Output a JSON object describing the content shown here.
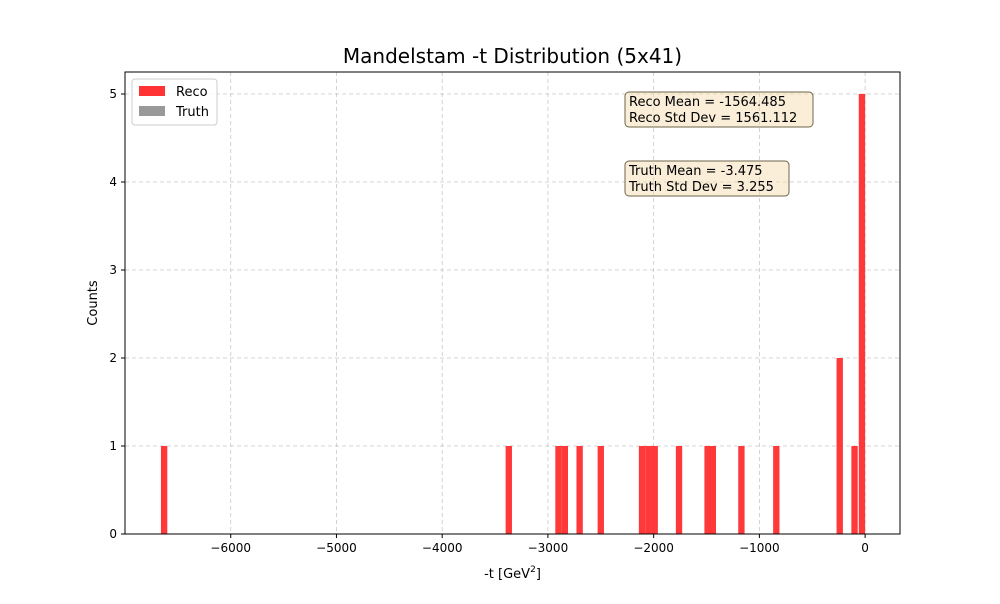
{
  "chart_data": {
    "type": "bar",
    "title": "Mandelstam -t Distribution (5x41)",
    "xlabel": "-t [GeV",
    "xlabel_sup": "2",
    "xlabel_suffix": "]",
    "ylabel": "Counts",
    "xlim": [
      -7000,
      330
    ],
    "ylim": [
      0,
      5.25
    ],
    "x_ticks": [
      -6000,
      -5000,
      -4000,
      -3000,
      -2000,
      -1000,
      0
    ],
    "x_tick_labels": [
      "−6000",
      "−5000",
      "−4000",
      "−3000",
      "−2000",
      "−1000",
      "0"
    ],
    "y_ticks": [
      0,
      1,
      2,
      3,
      4,
      5
    ],
    "y_tick_labels": [
      "0",
      "1",
      "2",
      "3",
      "4",
      "5"
    ],
    "grid": true,
    "legend_position": "top-left",
    "legend": [
      "Reco",
      "Truth"
    ],
    "bin_width": 60,
    "series": [
      {
        "name": "Reco",
        "color": "#ff3333",
        "bins": [
          {
            "x": -6630,
            "count": 1
          },
          {
            "x": -3370,
            "count": 1
          },
          {
            "x": -2900,
            "count": 1
          },
          {
            "x": -2840,
            "count": 1
          },
          {
            "x": -2700,
            "count": 1
          },
          {
            "x": -2500,
            "count": 1
          },
          {
            "x": -2110,
            "count": 1
          },
          {
            "x": -2050,
            "count": 1
          },
          {
            "x": -1990,
            "count": 1
          },
          {
            "x": -1760,
            "count": 1
          },
          {
            "x": -1490,
            "count": 1
          },
          {
            "x": -1440,
            "count": 1
          },
          {
            "x": -1170,
            "count": 1
          },
          {
            "x": -840,
            "count": 1
          },
          {
            "x": -240,
            "count": 2
          },
          {
            "x": -100,
            "count": 1
          },
          {
            "x": -30,
            "count": 5
          }
        ]
      },
      {
        "name": "Truth",
        "color": "#999999",
        "bins": []
      }
    ],
    "annotations": {
      "reco_mean": "Reco Mean = -1564.485",
      "reco_std": "Reco Std Dev = 1561.112",
      "truth_mean": "Truth Mean = -3.475",
      "truth_std": "Truth Std Dev = 3.255"
    }
  }
}
